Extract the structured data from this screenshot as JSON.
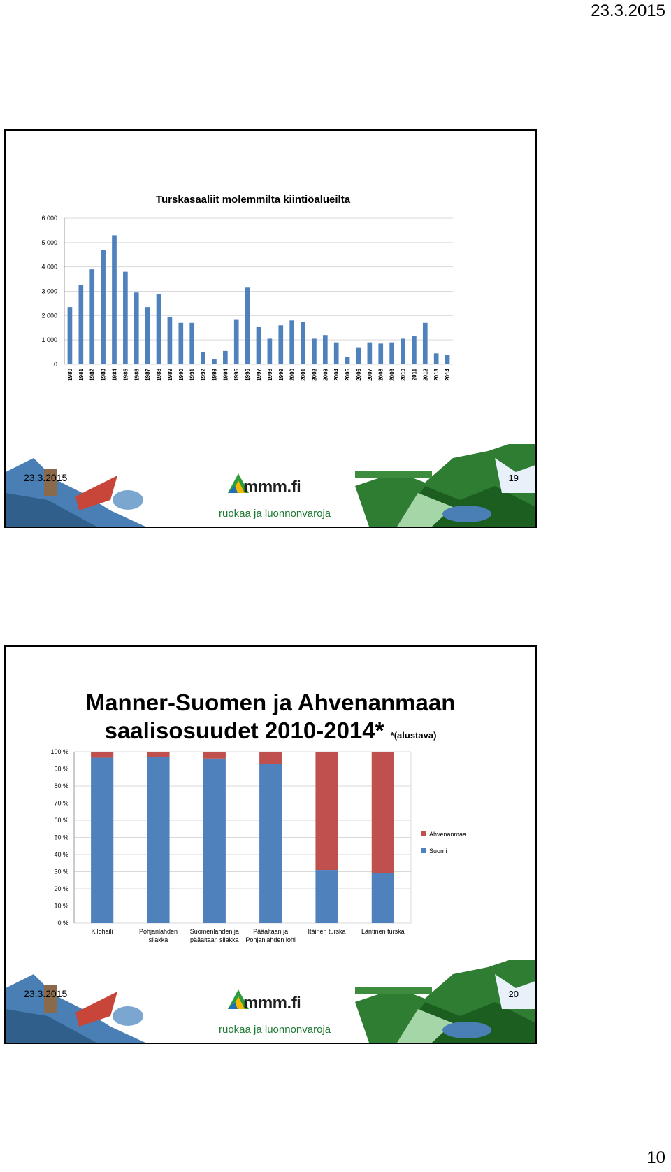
{
  "page": {
    "date": "23.3.2015",
    "number": "10"
  },
  "footer": {
    "logo": "mmm.fi",
    "tagline": "ruokaa ja luonnonvaroja"
  },
  "slide1": {
    "footer_date": "23.3.2015",
    "slide_number": "19",
    "chart_data": {
      "type": "bar",
      "title": "Turskasaaliit molemmilta kiintiöalueilta",
      "categories": [
        "1980",
        "1981",
        "1982",
        "1983",
        "1984",
        "1985",
        "1986",
        "1987",
        "1988",
        "1989",
        "1990",
        "1991",
        "1992",
        "1993",
        "1994",
        "1995",
        "1996",
        "1997",
        "1998",
        "1999",
        "2000",
        "2001",
        "2002",
        "2003",
        "2004",
        "2005",
        "2006",
        "2007",
        "2008",
        "2009",
        "2010",
        "2011",
        "2012",
        "2013",
        "2014"
      ],
      "values": [
        2350,
        3250,
        3900,
        4700,
        5300,
        3800,
        2950,
        2350,
        2900,
        1950,
        1700,
        1700,
        500,
        200,
        550,
        1850,
        3150,
        1550,
        1050,
        1600,
        1800,
        1750,
        1050,
        1200,
        900,
        300,
        700,
        900,
        850,
        900,
        1050,
        1150,
        1700,
        450,
        400
      ],
      "ylim": [
        0,
        6000
      ],
      "yticks": [
        "0",
        "1 000",
        "2 000",
        "3 000",
        "4 000",
        "5 000",
        "6 000"
      ],
      "grid": true,
      "color": "#4f81bd"
    }
  },
  "slide2": {
    "title_line1": "Manner-Suomen ja Ahvenanmaan",
    "title_line2": "saalisosuudet 2010-2014*",
    "title_note": "*(alustava)",
    "footer_date": "23.3.2015",
    "slide_number": "20",
    "chart_data": {
      "type": "bar",
      "stacked": true,
      "categories": [
        [
          "Kilohaili"
        ],
        [
          "Pohjanlahden",
          "silakka"
        ],
        [
          "Suomenlahden ja",
          "pääaltaan silakka"
        ],
        [
          "Pääaltaan ja",
          "Pohjanlahden lohi"
        ],
        [
          "Itäinen turska"
        ],
        [
          "Läntinen turska"
        ]
      ],
      "series": [
        {
          "name": "Suomi",
          "color": "#4f81bd",
          "values": [
            96.5,
            97,
            96,
            93,
            31,
            29
          ]
        },
        {
          "name": "Ahvenanmaa",
          "color": "#c0504d",
          "values": [
            3.5,
            3,
            4,
            7,
            69,
            71
          ]
        }
      ],
      "ylim": [
        0,
        100
      ],
      "yticks": [
        "0 %",
        "10 %",
        "20 %",
        "30 %",
        "40 %",
        "50 %",
        "60 %",
        "70 %",
        "80 %",
        "90 %",
        "100 %"
      ],
      "legend_position": "right",
      "grid": true
    }
  }
}
